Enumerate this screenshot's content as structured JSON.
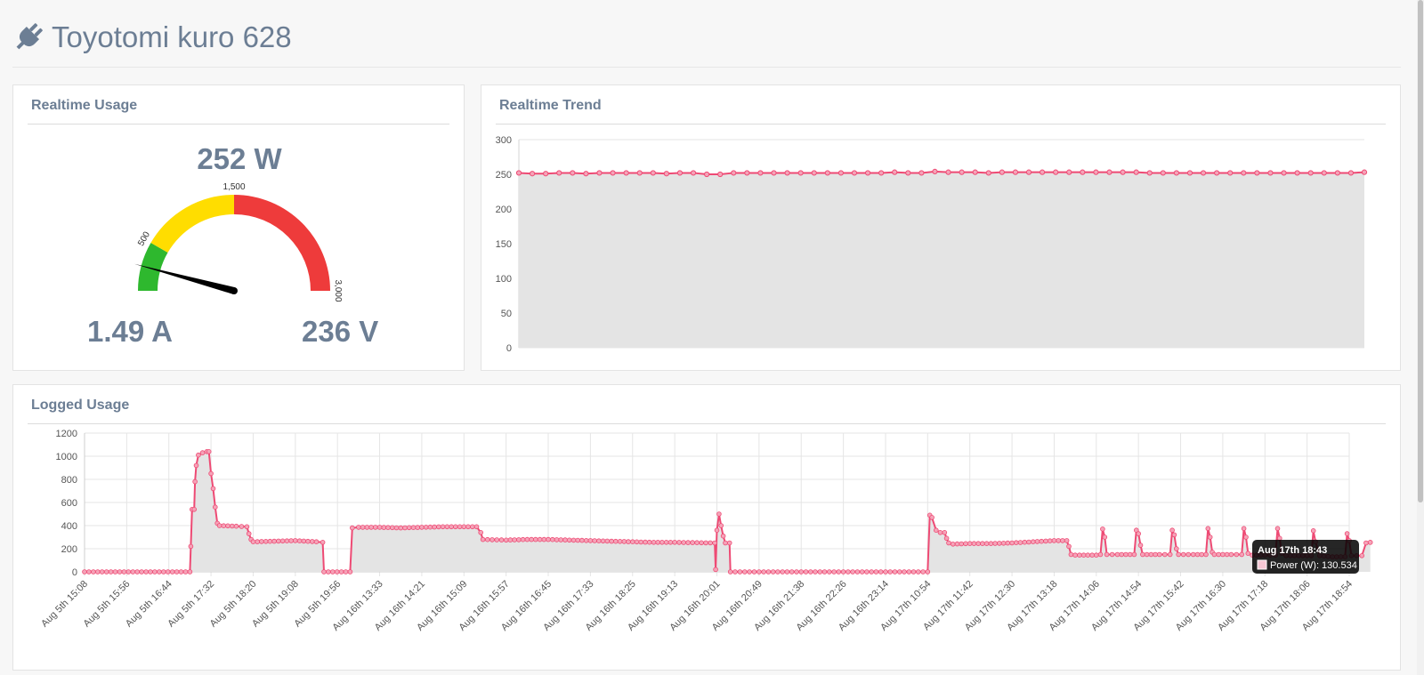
{
  "header": {
    "title": "Toyotomi kuro 628",
    "icon": "plug-icon"
  },
  "realtime_usage": {
    "title": "Realtime Usage",
    "power_readout": "252 W",
    "current_readout": "1.49 A",
    "voltage_readout": "236 V",
    "gauge": {
      "min": 0,
      "max": 3000,
      "value": 252,
      "tick_labels": [
        "500",
        "1,500",
        "3,000"
      ],
      "bands": [
        {
          "from": 0,
          "to": 500,
          "color": "#2eb82e"
        },
        {
          "from": 500,
          "to": 1500,
          "color": "#ffdd00"
        },
        {
          "from": 1500,
          "to": 3000,
          "color": "#ee3b3b"
        }
      ]
    }
  },
  "realtime_trend": {
    "title": "Realtime Trend"
  },
  "logged_usage": {
    "title": "Logged Usage",
    "tooltip": {
      "title": "Aug 17th 18:43",
      "label": "Power (W): 130.534"
    }
  },
  "colors": {
    "line": "#ee4a74",
    "fill": "#e4e4e4",
    "heading": "#6c7e94"
  },
  "chart_data": [
    {
      "type": "area",
      "title": "",
      "xlabel": "",
      "ylabel": "",
      "ylim": [
        0,
        300
      ],
      "yticks": [
        0,
        50,
        100,
        150,
        200,
        250,
        300
      ],
      "grid": true,
      "series": [
        {
          "values": [
            252,
            251,
            251,
            252,
            252,
            251,
            252,
            252,
            252,
            252,
            252,
            251,
            252,
            252,
            250,
            250,
            252,
            252,
            252,
            252,
            252,
            252,
            252,
            252,
            252,
            252,
            252,
            252,
            253,
            252,
            252,
            254,
            253,
            253,
            253,
            252,
            253,
            253,
            253,
            253,
            253,
            253,
            253,
            253,
            253,
            253,
            253,
            252,
            252,
            252,
            252,
            252,
            252,
            252,
            252,
            252,
            252,
            252,
            252,
            252,
            252,
            252,
            252,
            253
          ]
        }
      ]
    },
    {
      "type": "area",
      "title": "",
      "xlabel": "",
      "ylabel": "",
      "ylim": [
        0,
        1200
      ],
      "yticks": [
        0,
        200,
        400,
        600,
        800,
        1000,
        1200
      ],
      "grid": true,
      "categories": [
        "Aug 5th 15:08",
        "Aug 5th 15:56",
        "Aug 5th 16:44",
        "Aug 5th 17:32",
        "Aug 5th 18:20",
        "Aug 5th 19:08",
        "Aug 5th 19:56",
        "Aug 16th 13:33",
        "Aug 16th 14:21",
        "Aug 16th 15:09",
        "Aug 16th 15:57",
        "Aug 16th 16:45",
        "Aug 16th 17:33",
        "Aug 16th 18:25",
        "Aug 16th 19:13",
        "Aug 16th 20:01",
        "Aug 16th 20:49",
        "Aug 16th 21:38",
        "Aug 16th 22:26",
        "Aug 16th 23:14",
        "Aug 17th 10:54",
        "Aug 17th 11:42",
        "Aug 17th 12:30",
        "Aug 17th 13:18",
        "Aug 17th 14:06",
        "Aug 17th 14:54",
        "Aug 17th 15:42",
        "Aug 17th 16:30",
        "Aug 17th 17:18",
        "Aug 17th 18:06",
        "Aug 17th 18:54"
      ],
      "series": [
        {
          "name": "Power (W)",
          "points": [
            [
              0,
              0
            ],
            [
              2.5,
              0
            ],
            [
              2.52,
              220
            ],
            [
              2.55,
              540
            ],
            [
              2.6,
              540
            ],
            [
              2.62,
              780
            ],
            [
              2.65,
              920
            ],
            [
              2.7,
              1010
            ],
            [
              2.8,
              1030
            ],
            [
              2.9,
              1040
            ],
            [
              2.95,
              1040
            ],
            [
              3.0,
              850
            ],
            [
              3.05,
              720
            ],
            [
              3.1,
              560
            ],
            [
              3.15,
              420
            ],
            [
              3.2,
              400
            ],
            [
              3.6,
              395
            ],
            [
              3.85,
              390
            ],
            [
              3.9,
              330
            ],
            [
              3.95,
              280
            ],
            [
              4.0,
              260
            ],
            [
              4.5,
              265
            ],
            [
              5.0,
              270
            ],
            [
              5.5,
              260
            ],
            [
              5.65,
              255
            ],
            [
              5.68,
              0
            ],
            [
              6.3,
              0
            ],
            [
              6.35,
              380
            ],
            [
              6.5,
              385
            ],
            [
              7.0,
              385
            ],
            [
              7.5,
              380
            ],
            [
              8.0,
              385
            ],
            [
              8.5,
              390
            ],
            [
              9.0,
              390
            ],
            [
              9.3,
              390
            ],
            [
              9.4,
              340
            ],
            [
              9.45,
              280
            ],
            [
              10.0,
              275
            ],
            [
              10.5,
              280
            ],
            [
              11.0,
              280
            ],
            [
              11.5,
              275
            ],
            [
              12.0,
              270
            ],
            [
              12.5,
              265
            ],
            [
              13.0,
              260
            ],
            [
              13.5,
              255
            ],
            [
              14.0,
              255
            ],
            [
              14.95,
              250
            ],
            [
              14.97,
              20
            ],
            [
              15.0,
              360
            ],
            [
              15.05,
              500
            ],
            [
              15.1,
              400
            ],
            [
              15.15,
              310
            ],
            [
              15.2,
              250
            ],
            [
              15.3,
              250
            ],
            [
              15.32,
              0
            ],
            [
              16.0,
              0
            ],
            [
              17.0,
              0
            ],
            [
              18.0,
              0
            ],
            [
              19.0,
              0
            ],
            [
              20.0,
              0
            ],
            [
              20.05,
              490
            ],
            [
              20.1,
              470
            ],
            [
              20.2,
              360
            ],
            [
              20.3,
              340
            ],
            [
              20.4,
              340
            ],
            [
              20.45,
              290
            ],
            [
              20.5,
              250
            ],
            [
              20.6,
              240
            ],
            [
              21.0,
              245
            ],
            [
              21.5,
              245
            ],
            [
              22.0,
              250
            ],
            [
              22.5,
              260
            ],
            [
              23.0,
              270
            ],
            [
              23.3,
              270
            ],
            [
              23.35,
              220
            ],
            [
              23.4,
              150
            ],
            [
              23.5,
              145
            ],
            [
              24.0,
              145
            ],
            [
              24.1,
              150
            ],
            [
              24.15,
              370
            ],
            [
              24.2,
              300
            ],
            [
              24.25,
              150
            ],
            [
              24.5,
              150
            ],
            [
              24.9,
              150
            ],
            [
              24.95,
              360
            ],
            [
              25.0,
              330
            ],
            [
              25.05,
              230
            ],
            [
              25.1,
              150
            ],
            [
              25.5,
              150
            ],
            [
              25.75,
              150
            ],
            [
              25.8,
              360
            ],
            [
              25.85,
              320
            ],
            [
              25.9,
              200
            ],
            [
              25.95,
              150
            ],
            [
              26.3,
              150
            ],
            [
              26.6,
              150
            ],
            [
              26.65,
              375
            ],
            [
              26.7,
              300
            ],
            [
              26.75,
              170
            ],
            [
              26.8,
              150
            ],
            [
              27.2,
              150
            ],
            [
              27.45,
              150
            ],
            [
              27.5,
              375
            ],
            [
              27.55,
              300
            ],
            [
              27.6,
              160
            ],
            [
              27.7,
              145
            ],
            [
              28.0,
              145
            ],
            [
              28.25,
              145
            ],
            [
              28.3,
              375
            ],
            [
              28.35,
              290
            ],
            [
              28.4,
              160
            ],
            [
              28.5,
              140
            ],
            [
              28.9,
              140
            ],
            [
              29.1,
              140
            ],
            [
              29.15,
              355
            ],
            [
              29.2,
              260
            ],
            [
              29.3,
              140
            ],
            [
              29.6,
              130
            ],
            [
              29.9,
              131
            ],
            [
              29.95,
              330
            ],
            [
              30.0,
              270
            ],
            [
              30.05,
              140
            ],
            [
              30.3,
              140
            ],
            [
              30.4,
              250
            ],
            [
              30.5,
              255
            ]
          ]
        }
      ]
    }
  ]
}
